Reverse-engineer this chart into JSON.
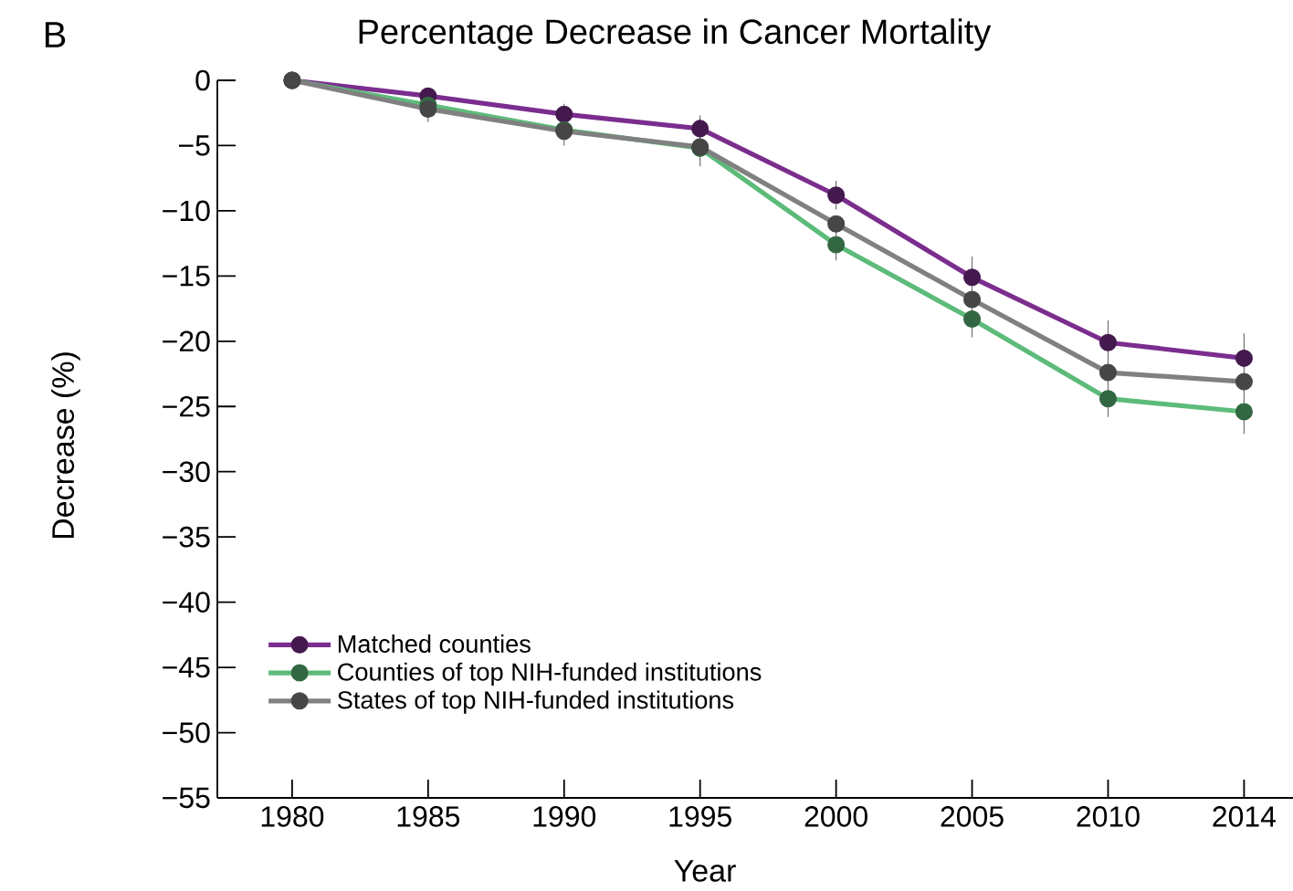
{
  "chart_data": {
    "type": "line",
    "title": "Percentage Decrease in Cancer Mortality",
    "xlabel": "Year",
    "ylabel": "Decrease (%)",
    "annotations": [
      "B"
    ],
    "categories": [
      "1980",
      "1985",
      "1990",
      "1995",
      "2000",
      "2005",
      "2010",
      "2014"
    ],
    "series": [
      {
        "name": "Matched counties",
        "color": "#7b2d8e",
        "values": [
          0,
          -1.2,
          -2.6,
          -3.7,
          -8.8,
          -15.1,
          -20.1,
          -21.3
        ],
        "errors": [
          null,
          0.6,
          0.8,
          1.0,
          1.1,
          1.6,
          1.7,
          1.9
        ]
      },
      {
        "name": "Counties of top NIH-funded institutions",
        "color": "#5dbb7a",
        "values": [
          0,
          -1.9,
          -3.8,
          -5.2,
          -12.6,
          -18.3,
          -24.4,
          -25.4
        ],
        "errors": [
          null,
          1.3,
          1.2,
          1.4,
          1.2,
          1.4,
          1.4,
          1.7
        ]
      },
      {
        "name": "States of top NIH-funded institutions",
        "color": "#808080",
        "values": [
          0,
          -2.2,
          -3.9,
          -5.1,
          -11.0,
          -16.8,
          -22.4,
          -23.1
        ]
      }
    ],
    "ylim": [
      -55,
      0
    ],
    "yticks": [
      0,
      {
        "value": -5,
        "label": "−5"
      },
      {
        "value": -10,
        "label": "−10"
      },
      {
        "value": -15,
        "label": "−15"
      },
      {
        "value": -20,
        "label": "−20"
      },
      {
        "value": -25,
        "label": "−25"
      },
      {
        "value": -30,
        "label": "−30"
      },
      {
        "value": -35,
        "label": "−35"
      },
      {
        "value": -40,
        "label": "−40"
      },
      {
        "value": -45,
        "label": "−45"
      },
      {
        "value": -50,
        "label": "−50"
      },
      {
        "value": -55,
        "label": "−55"
      }
    ],
    "legend": "bottom left",
    "marker": "circle",
    "line_style": "solid"
  }
}
